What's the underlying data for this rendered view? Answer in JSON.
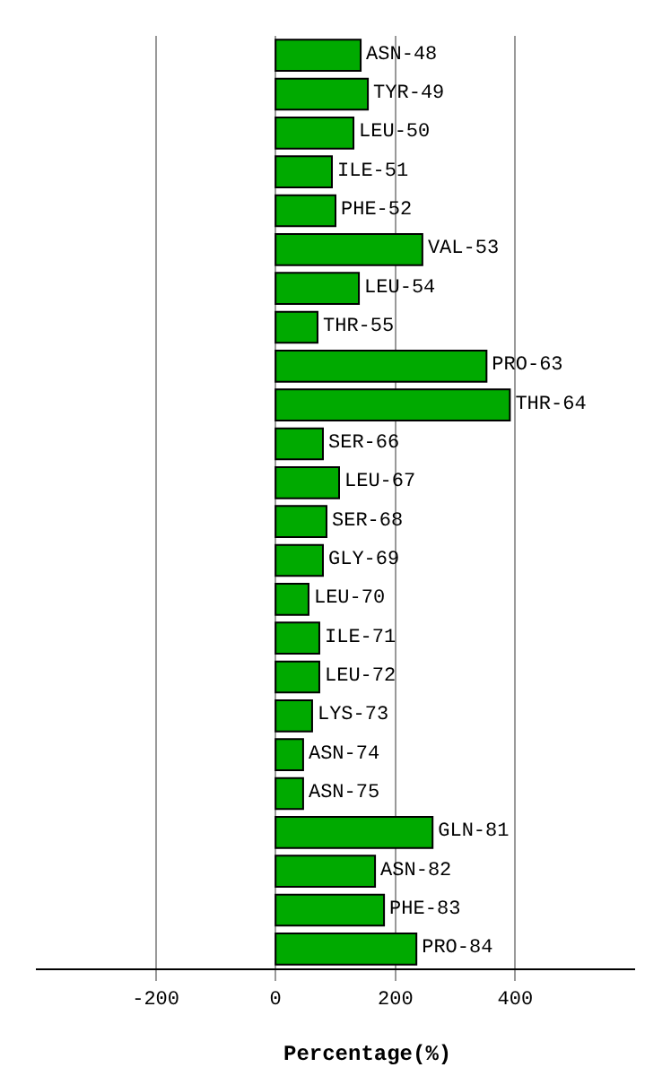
{
  "chart_data": {
    "type": "bar",
    "orientation": "horizontal",
    "xlabel": "Percentage(%)",
    "categories": [
      "ASN-48",
      "TYR-49",
      "LEU-50",
      "ILE-51",
      "PHE-52",
      "VAL-53",
      "LEU-54",
      "THR-55",
      "PRO-63",
      "THR-64",
      "SER-66",
      "LEU-67",
      "SER-68",
      "GLY-69",
      "LEU-70",
      "ILE-71",
      "LEU-72",
      "LYS-73",
      "ASN-74",
      "ASN-75",
      "GLN-81",
      "ASN-82",
      "PHE-83",
      "PRO-84"
    ],
    "values": [
      142,
      154,
      130,
      94,
      100,
      245,
      139,
      70,
      352,
      391,
      79,
      106,
      85,
      79,
      55,
      73,
      73,
      61,
      46,
      46,
      262,
      166,
      181,
      235
    ],
    "color": "#00aa00",
    "xlim": [
      -400,
      600
    ],
    "xticks": [
      -200,
      0,
      200,
      400
    ],
    "grid": "x",
    "tick_labels": "x",
    "legend": false
  }
}
